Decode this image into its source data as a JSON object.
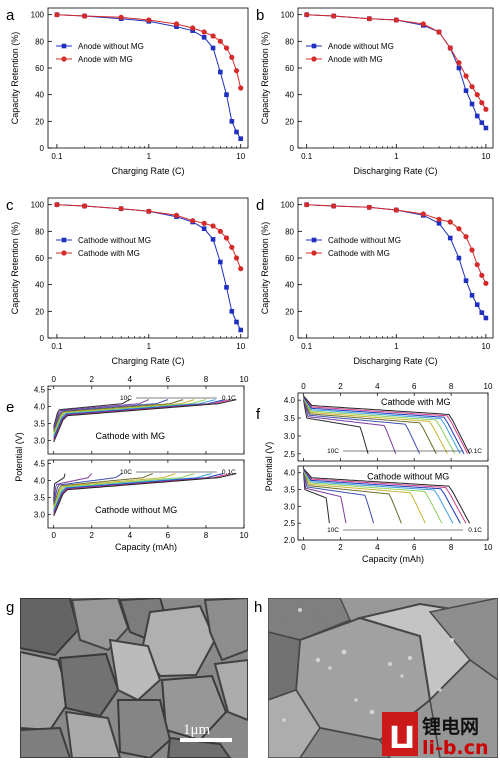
{
  "chart_data": [
    {
      "panel": "a",
      "type": "line",
      "xlabel": "Charging Rate (C)",
      "ylabel": "Capacity Retention (%)",
      "xscale": "log",
      "xlim": [
        0.08,
        12
      ],
      "ylim": [
        0,
        105
      ],
      "xticks": [
        "0.1",
        "1",
        "10"
      ],
      "yticks": [
        "0",
        "20",
        "40",
        "60",
        "80",
        "100"
      ],
      "legend": "top-left",
      "x": [
        0.1,
        0.2,
        0.5,
        1,
        2,
        3,
        4,
        5,
        6,
        7,
        8,
        9,
        10
      ],
      "series": [
        {
          "name": "Anode without MG",
          "color": "#1f2fbf",
          "marker": "square",
          "values": [
            100,
            99,
            97,
            95,
            91,
            88,
            83,
            75,
            57,
            40,
            20,
            12,
            7
          ]
        },
        {
          "name": "Anode with MG",
          "color": "#d42a2a",
          "marker": "circle",
          "values": [
            100,
            99,
            98,
            96,
            93,
            90,
            87,
            84,
            80,
            75,
            68,
            58,
            45
          ]
        }
      ]
    },
    {
      "panel": "b",
      "type": "line",
      "xlabel": "Discharging Rate (C)",
      "ylabel": "Capacity Retention (%)",
      "xscale": "log",
      "xlim": [
        0.08,
        12
      ],
      "ylim": [
        0,
        105
      ],
      "xticks": [
        "0.1",
        "1",
        "10"
      ],
      "yticks": [
        "0",
        "20",
        "40",
        "60",
        "80",
        "100"
      ],
      "legend": "top-left",
      "x": [
        0.1,
        0.2,
        0.5,
        1,
        2,
        3,
        4,
        5,
        6,
        7,
        8,
        9,
        10
      ],
      "series": [
        {
          "name": "Anode without MG",
          "color": "#1f2fbf",
          "marker": "square",
          "values": [
            100,
            99,
            97,
            96,
            92,
            87,
            75,
            60,
            43,
            33,
            24,
            19,
            15
          ]
        },
        {
          "name": "Anode with MG",
          "color": "#d42a2a",
          "marker": "circle",
          "values": [
            100,
            99,
            97,
            96,
            93,
            87,
            75,
            64,
            54,
            46,
            40,
            34,
            29
          ]
        }
      ]
    },
    {
      "panel": "c",
      "type": "line",
      "xlabel": "Charging Rate (C)",
      "ylabel": "Capacity Retention (%)",
      "xscale": "log",
      "xlim": [
        0.08,
        12
      ],
      "ylim": [
        0,
        105
      ],
      "xticks": [
        "0.1",
        "1",
        "10"
      ],
      "yticks": [
        "0",
        "20",
        "40",
        "60",
        "80",
        "100"
      ],
      "legend": "middle-left",
      "x": [
        0.1,
        0.2,
        0.5,
        1,
        2,
        3,
        4,
        5,
        6,
        7,
        8,
        9,
        10
      ],
      "series": [
        {
          "name": "Cathode without MG",
          "color": "#1f2fbf",
          "marker": "square",
          "values": [
            100,
            99,
            97,
            95,
            91,
            87,
            82,
            74,
            57,
            38,
            20,
            12,
            6
          ]
        },
        {
          "name": "Cathode with MG",
          "color": "#d42a2a",
          "marker": "circle",
          "values": [
            100,
            99,
            97,
            95,
            92,
            88,
            86,
            84,
            80,
            75,
            68,
            60,
            52
          ]
        }
      ]
    },
    {
      "panel": "d",
      "type": "line",
      "xlabel": "Discharging Rate (C)",
      "ylabel": "Capacity Retention (%)",
      "xscale": "log",
      "xlim": [
        0.08,
        12
      ],
      "ylim": [
        0,
        105
      ],
      "xticks": [
        "0.1",
        "1",
        "10"
      ],
      "yticks": [
        "0",
        "20",
        "40",
        "60",
        "80",
        "100"
      ],
      "legend": "middle-left",
      "x": [
        0.1,
        0.2,
        0.5,
        1,
        2,
        3,
        4,
        5,
        6,
        7,
        8,
        9,
        10
      ],
      "series": [
        {
          "name": "Cathode without MG",
          "color": "#1f2fbf",
          "marker": "square",
          "values": [
            100,
            99,
            98,
            96,
            92,
            86,
            75,
            60,
            43,
            32,
            25,
            19,
            15
          ]
        },
        {
          "name": "Cathode with MG",
          "color": "#d42a2a",
          "marker": "circle",
          "values": [
            100,
            99,
            98,
            96,
            93,
            89,
            87,
            82,
            76,
            66,
            55,
            47,
            41
          ]
        }
      ]
    },
    {
      "panel": "e",
      "type": "line",
      "xlabel": "Capacity (mAh)",
      "ylabel": "Potential (V)",
      "xlim": [
        -0.3,
        10
      ],
      "xticks": [
        "0",
        "2",
        "4",
        "6",
        "8",
        "10"
      ],
      "curve_colors": [
        "#2a2a2a",
        "#7a3aa0",
        "#3c4fb0",
        "#6b6b2a",
        "#c8b432",
        "#8ccf5a",
        "#3aa0e0",
        "#1a3ab8",
        "#d43a8a",
        "#222222"
      ],
      "subplots": [
        {
          "label": "Cathode with MG",
          "ylim": [
            2.6,
            4.6
          ],
          "yticks": [
            "3.0",
            "3.5",
            "4.0",
            "4.5"
          ],
          "rate_high": "10C",
          "rate_low": "0.1C",
          "capacities": [
            4.0,
            5.0,
            6.0,
            6.8,
            7.4,
            8.0,
            8.5,
            9.0,
            9.3,
            9.6
          ]
        },
        {
          "label": "Cathode without MG",
          "ylim": [
            2.6,
            4.6
          ],
          "yticks": [
            "3.0",
            "3.5",
            "4.0",
            "4.5"
          ],
          "rate_high": "10C",
          "rate_low": "0.1C",
          "capacities": [
            0.6,
            2.0,
            3.6,
            5.2,
            6.4,
            7.4,
            8.3,
            8.9,
            9.3,
            9.6
          ]
        }
      ]
    },
    {
      "panel": "f",
      "type": "line",
      "xlabel": "Capacity (mAh)",
      "ylabel": "Potential (V)",
      "xlim": [
        -0.3,
        10
      ],
      "xticks": [
        "0",
        "2",
        "4",
        "6",
        "8",
        "10"
      ],
      "curve_colors": [
        "#2a2a2a",
        "#7a3aa0",
        "#3c4fb0",
        "#6b6b2a",
        "#c8b432",
        "#8ccf5a",
        "#3aa0e0",
        "#1a3ab8",
        "#d43a8a",
        "#222222"
      ],
      "subplots": [
        {
          "label": "Cathode with MG",
          "ylim": [
            2.3,
            4.2
          ],
          "yticks": [
            "2.5",
            "3.0",
            "3.5",
            "4.0"
          ],
          "rate_high": "10C",
          "rate_low": "0.1C",
          "capacities": [
            3.5,
            5.0,
            6.3,
            7.2,
            7.8,
            8.2,
            8.5,
            8.7,
            8.9,
            9.0
          ]
        },
        {
          "label": "Cathode without MG",
          "ylim": [
            2.0,
            4.2
          ],
          "yticks": [
            "2.0",
            "2.5",
            "3.0",
            "3.5",
            "4.0"
          ],
          "rate_high": "10C",
          "rate_low": "0.1C",
          "capacities": [
            1.4,
            2.3,
            3.8,
            5.3,
            6.6,
            7.5,
            8.1,
            8.5,
            8.8,
            9.0
          ]
        }
      ]
    }
  ],
  "micrographs": {
    "g": {
      "letter": "g",
      "scale_bar": "1μm"
    },
    "h": {
      "letter": "h"
    }
  },
  "watermark": {
    "site_name": "锂电网",
    "url": "li-b.cn"
  }
}
